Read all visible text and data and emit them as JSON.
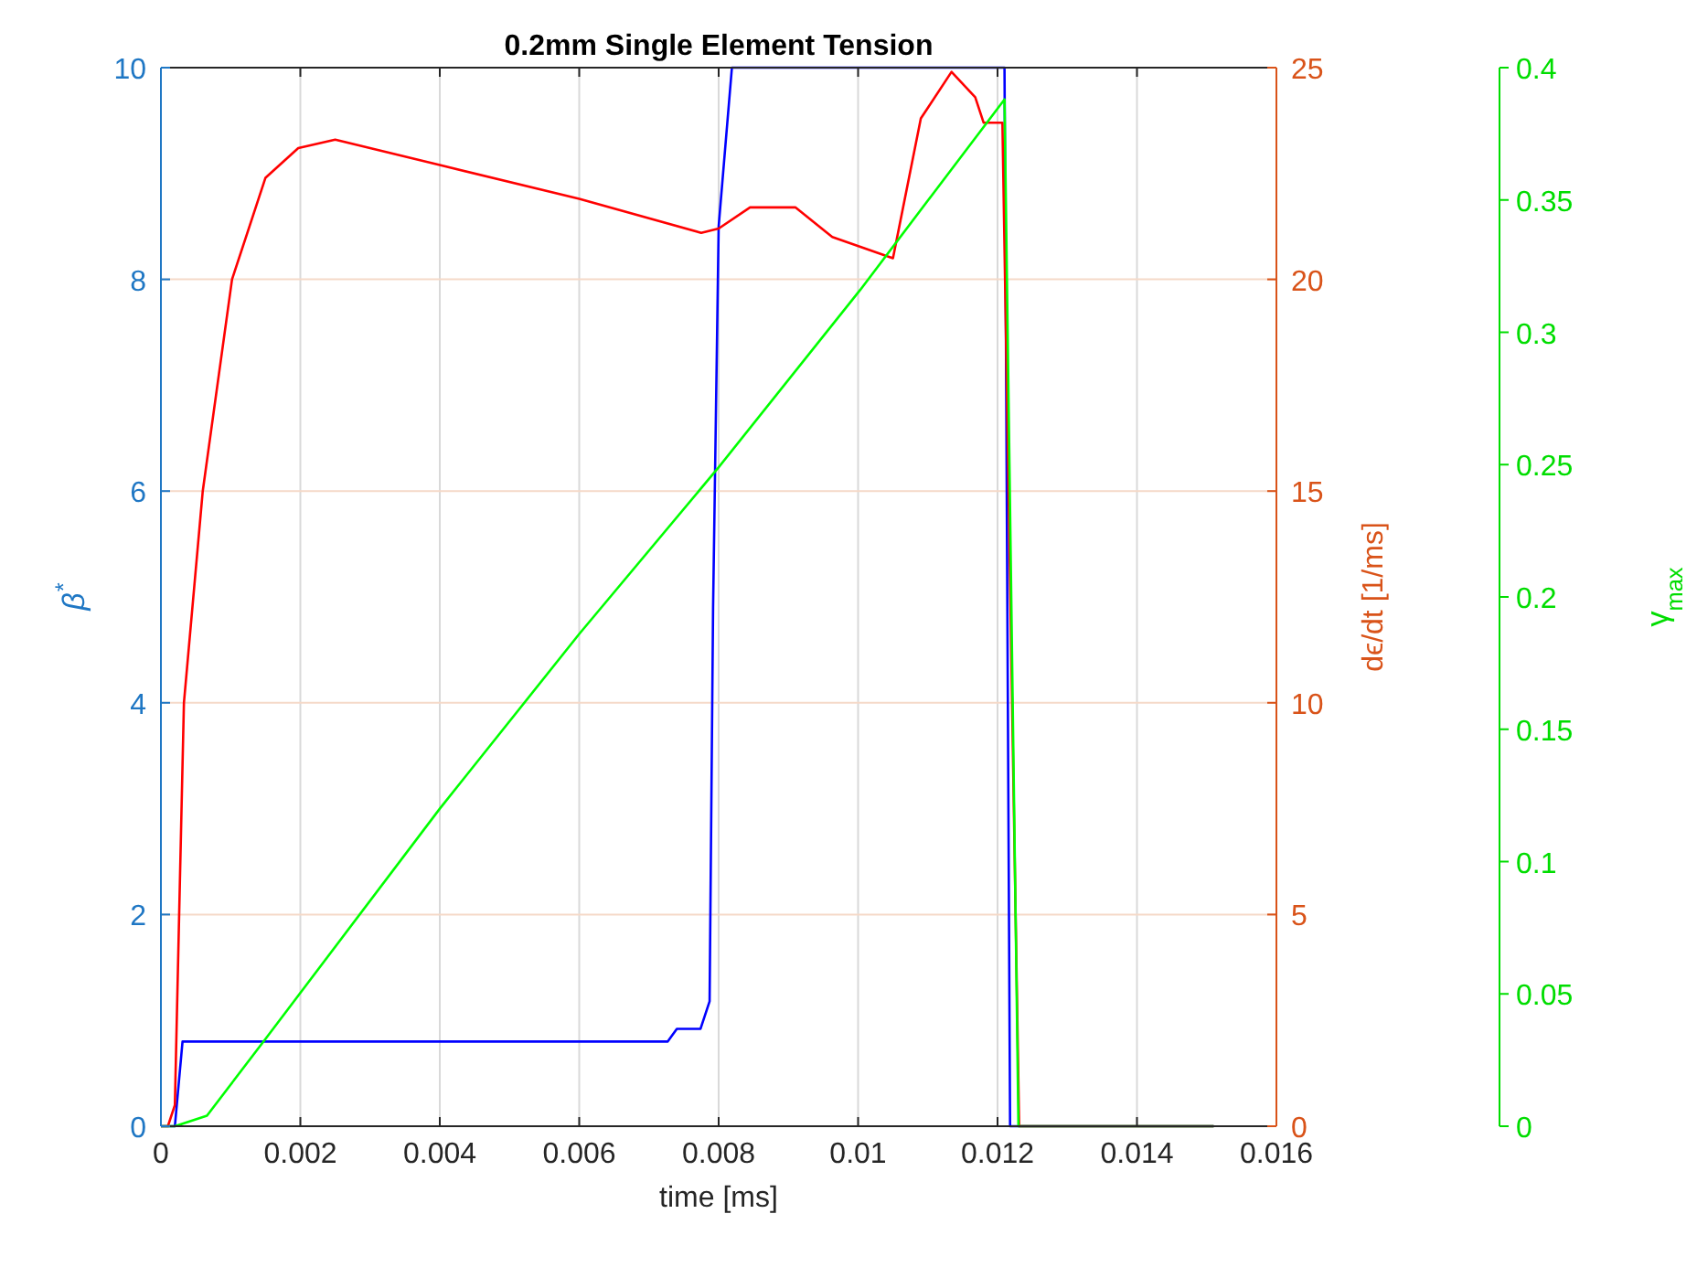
{
  "chart_data": {
    "type": "line",
    "title": "0.2mm Single Element Tension",
    "xlabel": "time [ms]",
    "ylabel": "β$^{*}$",
    "y2label": "dϵ/dt [1/ms]",
    "y3label": "γ$_{max}$",
    "xlim": [
      0,
      0.016
    ],
    "xticks": [
      0,
      0.002,
      0.004,
      0.006,
      0.008,
      0.01,
      0.012,
      0.014,
      0.016
    ],
    "ylim": [
      0,
      10
    ],
    "yticks": [
      0,
      2,
      4,
      6,
      8,
      10
    ],
    "y2lim": [
      0,
      25
    ],
    "y2ticks": [
      0,
      5,
      10,
      15,
      20,
      25
    ],
    "y3lim": [
      0,
      0.4
    ],
    "y3ticks": [
      0,
      0.05,
      0.1,
      0.15,
      0.2,
      0.25,
      0.3,
      0.35,
      0.4
    ],
    "grid": true,
    "marker": "none",
    "line_style": "solid",
    "series": [
      {
        "color": "#0000ff",
        "axis": "y",
        "x": [
          0,
          0.0002,
          0.00031,
          0.0045,
          0.00727,
          0.0074,
          0.00774,
          0.00787,
          0.00792,
          0.008,
          0.00819,
          0.0121,
          0.01218,
          0.0151
        ],
        "values": [
          0,
          0,
          0.8,
          0.8,
          0.8,
          0.92,
          0.92,
          1.18,
          4.9,
          8.5,
          10,
          10,
          0,
          0
        ]
      },
      {
        "color": "#ff0000",
        "axis": "y2",
        "x": [
          0,
          0.0001,
          0.0002,
          0.00033,
          0.0006,
          0.00102,
          0.0015,
          0.00197,
          0.0025,
          0.004,
          0.006,
          0.00775,
          0.008,
          0.00845,
          0.0091,
          0.00963,
          0.0105,
          0.0109,
          0.01134,
          0.01168,
          0.0118,
          0.01207,
          0.01231,
          0.0151
        ],
        "values": [
          0,
          0,
          0.5,
          10,
          15,
          20,
          22.4,
          23.1,
          23.3,
          22.7,
          21.9,
          21.1,
          21.2,
          21.7,
          21.7,
          21,
          20.5,
          23.8,
          24.9,
          24.3,
          23.7,
          23.7,
          0,
          0
        ]
      },
      {
        "color": "#00ff00",
        "axis": "y3",
        "x": [
          0,
          0.0002,
          0.00066,
          0.0015,
          0.004,
          0.006,
          0.008,
          0.01003,
          0.0121,
          0.0123,
          0.0151
        ],
        "values": [
          0,
          0,
          0.004,
          0.033,
          0.12,
          0.186,
          0.249,
          0.316,
          0.388,
          0,
          0
        ]
      }
    ]
  }
}
